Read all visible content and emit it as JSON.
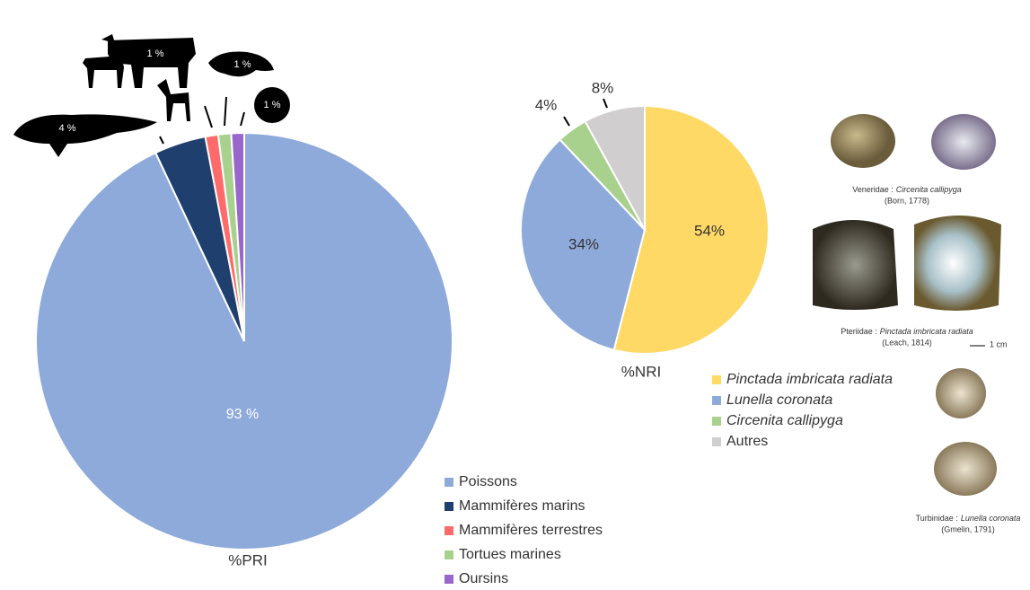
{
  "chart_data": [
    {
      "type": "pie",
      "title": "%PRI",
      "categories": [
        "Poissons",
        "Mammifères marins",
        "Mammifères terrestres",
        "Tortues marines",
        "Oursins"
      ],
      "values": [
        93,
        4,
        1,
        1,
        1
      ],
      "value_labels": [
        "93 %",
        "4 %",
        "1 %",
        "1 %",
        "1 %"
      ],
      "colors": [
        "#8eaadb",
        "#1f3f6e",
        "#ff6b6b",
        "#a9d18e",
        "#9966cc"
      ]
    },
    {
      "type": "pie",
      "title": "%NRI",
      "categories": [
        "Pinctada imbricata radiata",
        "Lunella coronata",
        "Circenita callipyga",
        "Autres"
      ],
      "values": [
        54,
        34,
        4,
        8
      ],
      "value_labels": [
        "54%",
        "34%",
        "4%",
        "8%"
      ],
      "colors": [
        "#ffd966",
        "#8eaadb",
        "#a9d18e",
        "#d0cece"
      ]
    }
  ],
  "specimens": [
    {
      "family": "Veneridae :",
      "species": "Circenita callipyga",
      "author": "(Born, 1778)"
    },
    {
      "family": "Pteriidae :",
      "species": "Pinctada imbricata radiata",
      "author": "(Leach, 1814)"
    },
    {
      "family": "Turbinidae :",
      "species": "Lunella coronata",
      "author": "(Gmelin, 1791)"
    }
  ],
  "scale_bar": "1 cm"
}
